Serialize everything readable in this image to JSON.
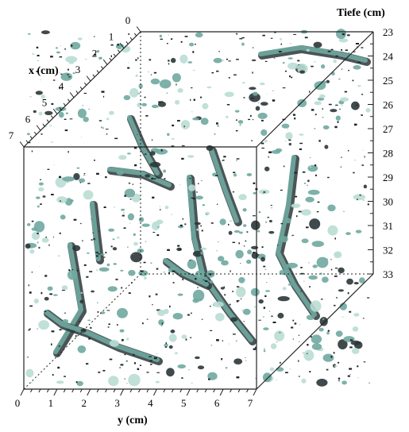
{
  "figure": {
    "depth_axis": {
      "title": "Tiefe (cm)",
      "ticks": [
        "23",
        "24",
        "25",
        "26",
        "27",
        "28",
        "29",
        "30",
        "31",
        "32",
        "33"
      ]
    },
    "x_axis": {
      "title": "x (cm)",
      "ticks": [
        "0",
        "1",
        "2",
        "3",
        "4",
        "5",
        "6",
        "7"
      ]
    },
    "y_axis": {
      "title": "y (cm)",
      "ticks": [
        "0",
        "1",
        "2",
        "3",
        "4",
        "5",
        "6",
        "7"
      ]
    },
    "colors": {
      "frame": "#222222",
      "pore_light": "#b9ddd4",
      "pore_mid": "#6fa9a0",
      "pore_dark": "#2b3638"
    }
  }
}
